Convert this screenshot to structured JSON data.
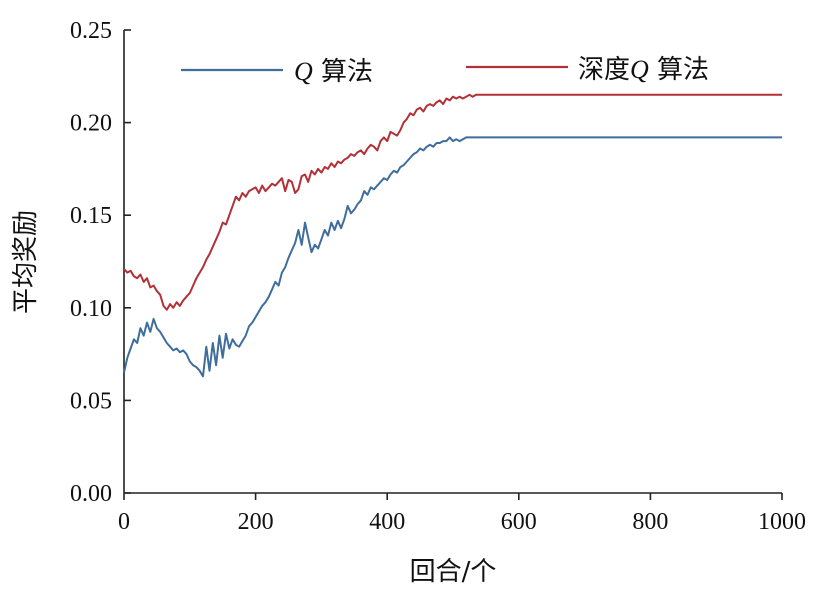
{
  "chart_data": {
    "type": "line",
    "xlabel": "回合/个",
    "ylabel": "平均奖励",
    "xlim": [
      0,
      1000
    ],
    "ylim": [
      0,
      0.25
    ],
    "x_ticks": [
      "0",
      "200",
      "400",
      "600",
      "800",
      "1000"
    ],
    "y_ticks": [
      "0.00",
      "0.05",
      "0.10",
      "0.15",
      "0.20",
      "0.25"
    ],
    "grid": false,
    "legend_position": "top",
    "series": [
      {
        "name": "Q 算法",
        "legend_prefix": "Q",
        "legend_suffix": " 算法",
        "color": "#3f6e9c",
        "x": [
          0,
          5,
          10,
          15,
          20,
          25,
          30,
          35,
          40,
          45,
          50,
          55,
          60,
          65,
          70,
          75,
          80,
          85,
          90,
          95,
          100,
          105,
          110,
          115,
          120,
          125,
          130,
          135,
          140,
          145,
          150,
          155,
          160,
          165,
          170,
          175,
          180,
          185,
          190,
          195,
          200,
          205,
          210,
          215,
          220,
          225,
          230,
          235,
          240,
          245,
          250,
          255,
          260,
          265,
          270,
          275,
          280,
          285,
          290,
          295,
          300,
          305,
          310,
          315,
          320,
          325,
          330,
          335,
          340,
          345,
          350,
          355,
          360,
          365,
          370,
          375,
          380,
          385,
          390,
          395,
          400,
          405,
          410,
          415,
          420,
          425,
          430,
          435,
          440,
          445,
          450,
          455,
          460,
          465,
          470,
          475,
          480,
          485,
          490,
          495,
          500,
          505,
          510,
          515,
          520,
          525,
          530,
          1000
        ],
        "y": [
          0.065,
          0.073,
          0.078,
          0.083,
          0.081,
          0.089,
          0.085,
          0.092,
          0.087,
          0.094,
          0.089,
          0.087,
          0.084,
          0.081,
          0.079,
          0.077,
          0.078,
          0.076,
          0.077,
          0.075,
          0.071,
          0.069,
          0.068,
          0.066,
          0.063,
          0.079,
          0.066,
          0.081,
          0.069,
          0.085,
          0.073,
          0.086,
          0.078,
          0.083,
          0.08,
          0.079,
          0.082,
          0.085,
          0.09,
          0.092,
          0.095,
          0.098,
          0.101,
          0.103,
          0.106,
          0.11,
          0.114,
          0.112,
          0.119,
          0.122,
          0.127,
          0.131,
          0.135,
          0.142,
          0.134,
          0.146,
          0.138,
          0.13,
          0.134,
          0.132,
          0.137,
          0.142,
          0.139,
          0.146,
          0.142,
          0.147,
          0.143,
          0.148,
          0.155,
          0.151,
          0.153,
          0.156,
          0.158,
          0.163,
          0.161,
          0.165,
          0.164,
          0.166,
          0.168,
          0.17,
          0.169,
          0.172,
          0.174,
          0.173,
          0.176,
          0.177,
          0.179,
          0.181,
          0.183,
          0.184,
          0.186,
          0.185,
          0.187,
          0.188,
          0.187,
          0.189,
          0.189,
          0.19,
          0.19,
          0.192,
          0.19,
          0.191,
          0.19,
          0.191,
          0.192,
          0.192,
          0.192,
          0.192
        ]
      },
      {
        "name": "深度Q 算法",
        "legend_prefix": "深度",
        "legend_q": "Q",
        "legend_suffix": " 算法",
        "color": "#b23137",
        "x": [
          0,
          5,
          10,
          15,
          20,
          25,
          30,
          35,
          40,
          45,
          50,
          55,
          60,
          65,
          70,
          75,
          80,
          85,
          90,
          95,
          100,
          105,
          110,
          115,
          120,
          125,
          130,
          135,
          140,
          145,
          150,
          155,
          160,
          165,
          170,
          175,
          180,
          185,
          190,
          195,
          200,
          205,
          210,
          215,
          220,
          225,
          230,
          235,
          240,
          245,
          250,
          255,
          260,
          265,
          270,
          275,
          280,
          285,
          290,
          295,
          300,
          305,
          310,
          315,
          320,
          325,
          330,
          335,
          340,
          345,
          350,
          355,
          360,
          365,
          370,
          375,
          380,
          385,
          390,
          395,
          400,
          405,
          410,
          415,
          420,
          425,
          430,
          435,
          440,
          445,
          450,
          455,
          460,
          465,
          470,
          475,
          480,
          485,
          490,
          495,
          500,
          505,
          510,
          515,
          520,
          525,
          530,
          535,
          540,
          545,
          550,
          555,
          1000
        ],
        "y": [
          0.121,
          0.119,
          0.12,
          0.117,
          0.116,
          0.118,
          0.114,
          0.116,
          0.111,
          0.112,
          0.109,
          0.107,
          0.101,
          0.099,
          0.102,
          0.1,
          0.103,
          0.101,
          0.104,
          0.106,
          0.108,
          0.112,
          0.116,
          0.119,
          0.122,
          0.126,
          0.129,
          0.133,
          0.137,
          0.141,
          0.146,
          0.145,
          0.15,
          0.155,
          0.16,
          0.158,
          0.162,
          0.16,
          0.163,
          0.164,
          0.165,
          0.162,
          0.166,
          0.163,
          0.165,
          0.167,
          0.166,
          0.168,
          0.17,
          0.163,
          0.169,
          0.168,
          0.162,
          0.164,
          0.171,
          0.172,
          0.168,
          0.174,
          0.172,
          0.175,
          0.173,
          0.176,
          0.175,
          0.178,
          0.176,
          0.179,
          0.178,
          0.18,
          0.181,
          0.183,
          0.182,
          0.184,
          0.185,
          0.183,
          0.186,
          0.188,
          0.187,
          0.185,
          0.19,
          0.192,
          0.19,
          0.195,
          0.194,
          0.193,
          0.196,
          0.2,
          0.202,
          0.205,
          0.204,
          0.207,
          0.208,
          0.206,
          0.209,
          0.21,
          0.209,
          0.211,
          0.212,
          0.21,
          0.213,
          0.212,
          0.214,
          0.213,
          0.214,
          0.213,
          0.214,
          0.215,
          0.214,
          0.215,
          0.215,
          0.215,
          0.215,
          0.215,
          0.215
        ]
      }
    ]
  }
}
